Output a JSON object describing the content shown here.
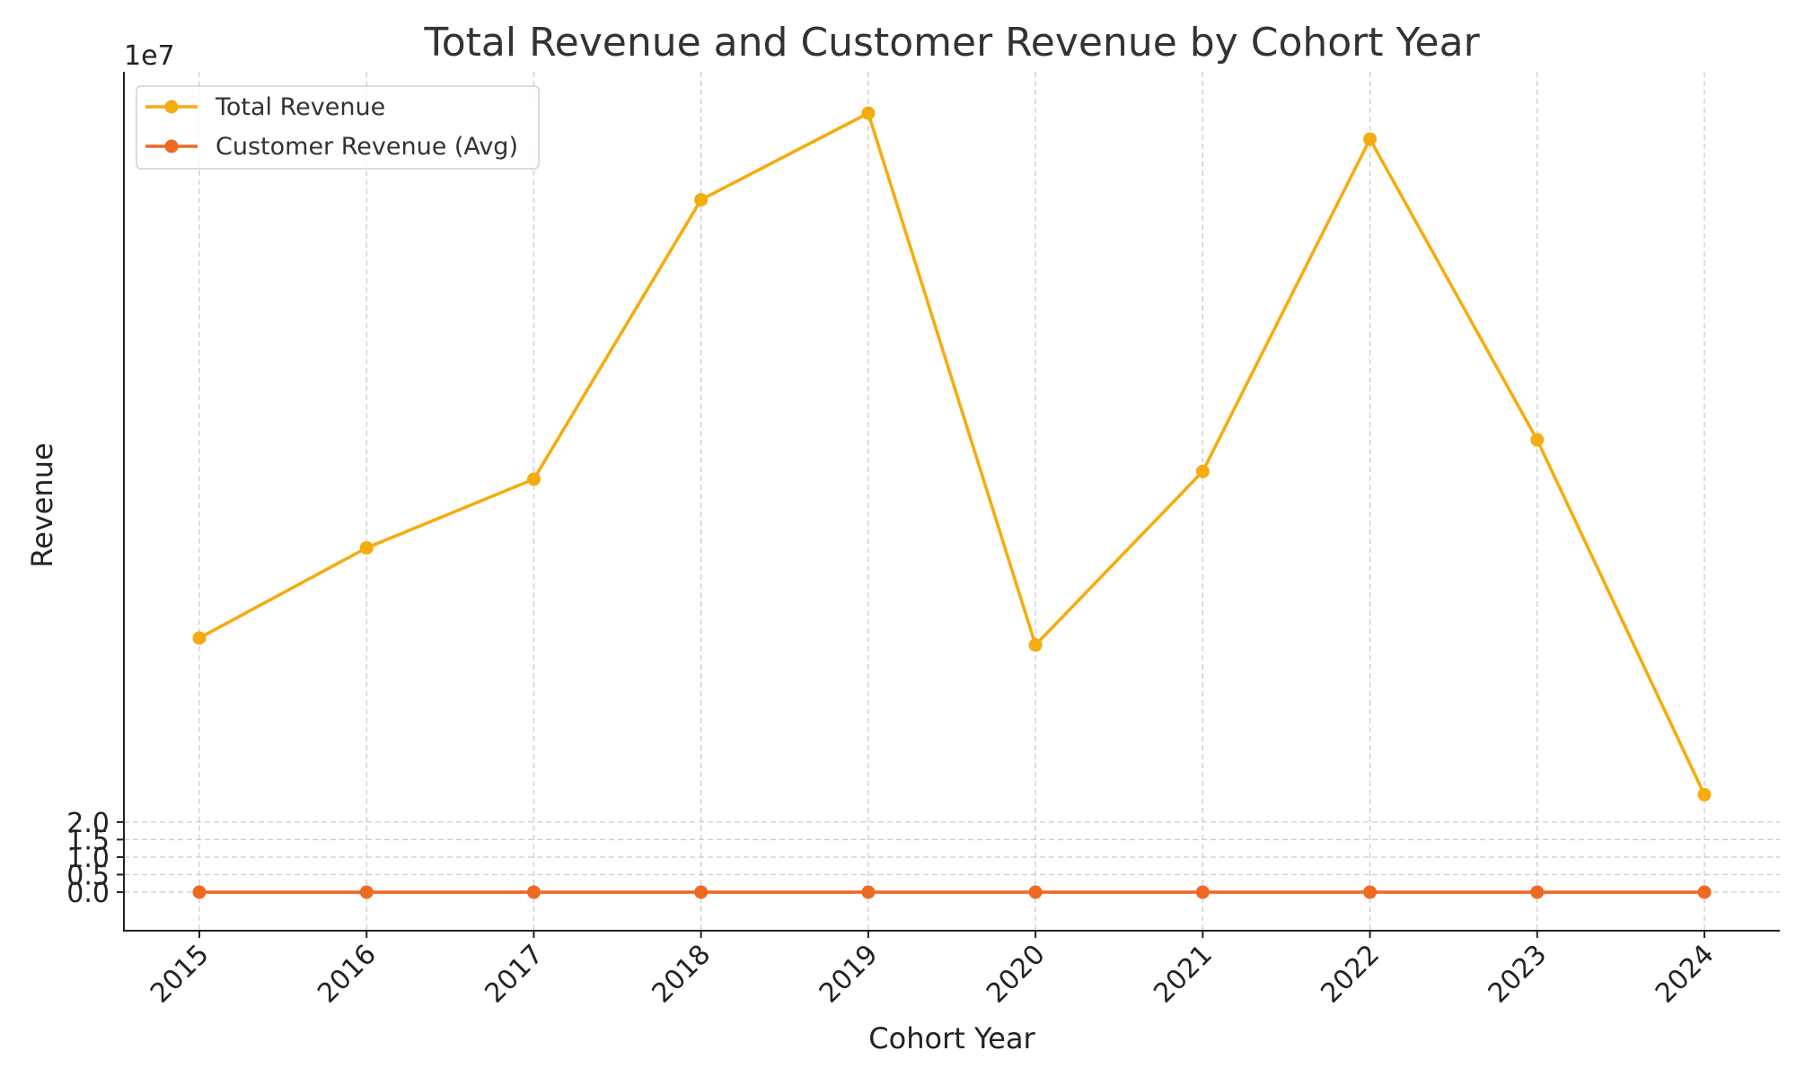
{
  "chart_data": {
    "type": "line",
    "title": "Total Revenue and Customer Revenue by Cohort Year",
    "xlabel": "Cohort Year",
    "ylabel": "Revenue",
    "y_offset_label": "1e7",
    "categories": [
      "2015",
      "2016",
      "2017",
      "2018",
      "2019",
      "2020",
      "2021",
      "2022",
      "2023",
      "2024"
    ],
    "y_ticks": [
      0.0,
      0.5,
      1.0,
      1.5,
      2.0
    ],
    "y_tick_labels": [
      "0.0",
      "0.5",
      "1.0",
      "1.5",
      "2.0"
    ],
    "y_scale": 10000000,
    "ylim": [
      -1.1,
      23.4
    ],
    "grid": true,
    "legend_position": "top-left",
    "series": [
      {
        "name": "Total Revenue",
        "color": "#F5AC0F",
        "values": [
          7.25,
          9.82,
          11.78,
          19.75,
          22.22,
          7.05,
          12.0,
          21.48,
          12.9,
          2.78
        ]
      },
      {
        "name": "Customer Revenue (Avg)",
        "color": "#EE6A24",
        "values": [
          0.0001,
          0.0001,
          0.0001,
          0.0001,
          0.0001,
          0.0001,
          0.0001,
          0.0001,
          0.0001,
          0.0001
        ]
      }
    ]
  }
}
